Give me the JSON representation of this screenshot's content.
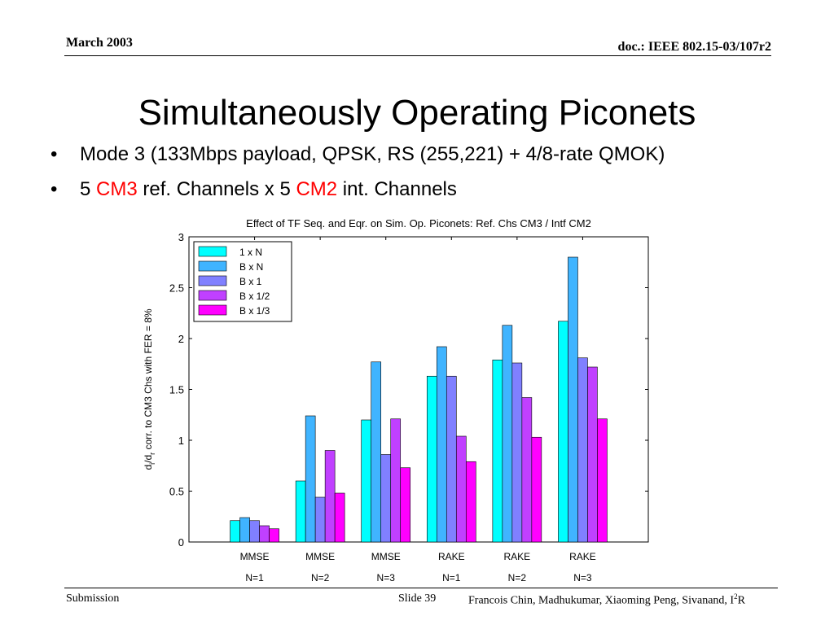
{
  "header": {
    "date": "March 2003",
    "doc": "doc.: IEEE 802.15-03/107r2"
  },
  "title": "Simultaneously Operating Piconets",
  "bullets": [
    {
      "marker": "•",
      "text": "Mode 3 (133Mbps payload, QPSK, RS (255,221) + 4/8-rate QMOK)"
    },
    {
      "marker": "•",
      "pre": "5 ",
      "red1": "CM3",
      "mid": " ref. Channels x 5 ",
      "red2": "CM2",
      "post": " int. Channels"
    }
  ],
  "footer": {
    "left": "Submission",
    "slide": "Slide 39",
    "authors": "Francois Chin, Madhukumar, Xiaoming Peng, Sivanand, I",
    "sup": "2",
    "tail": "R"
  },
  "chart_data": {
    "type": "bar",
    "title": "Effect of TF Seq. and Eqr. on Sim. Op. Piconets: Ref. Chs CM3 / Intf CM2",
    "ylabel": "d_i/d_r corr. to CM3 Chs with FER = 8%",
    "ylim": [
      0,
      3
    ],
    "yticks": [
      "0",
      "0.5",
      "1",
      "1.5",
      "2",
      "2.5",
      "3"
    ],
    "categories": [
      [
        "MMSE",
        "N=1"
      ],
      [
        "MMSE",
        "N=2"
      ],
      [
        "MMSE",
        "N=3"
      ],
      [
        "RAKE",
        "N=1"
      ],
      [
        "RAKE",
        "N=2"
      ],
      [
        "RAKE",
        "N=3"
      ]
    ],
    "legend_position": "top-left",
    "series": [
      {
        "name": "1 x N",
        "color": "#00ffff",
        "values": [
          0.21,
          0.6,
          1.2,
          1.63,
          1.79,
          2.17
        ]
      },
      {
        "name": "B x N",
        "color": "#40b4ff",
        "values": [
          0.24,
          1.24,
          1.77,
          1.92,
          2.13,
          2.8
        ]
      },
      {
        "name": "B x 1",
        "color": "#8080ff",
        "values": [
          0.21,
          0.44,
          0.86,
          1.63,
          1.76,
          1.81
        ]
      },
      {
        "name": "B x 1/2",
        "color": "#c040ff",
        "values": [
          0.16,
          0.9,
          1.21,
          1.04,
          1.42,
          1.72
        ]
      },
      {
        "name": "B x 1/3",
        "color": "#ff00ff",
        "values": [
          0.13,
          0.48,
          0.73,
          0.79,
          1.03,
          1.21
        ]
      }
    ]
  }
}
